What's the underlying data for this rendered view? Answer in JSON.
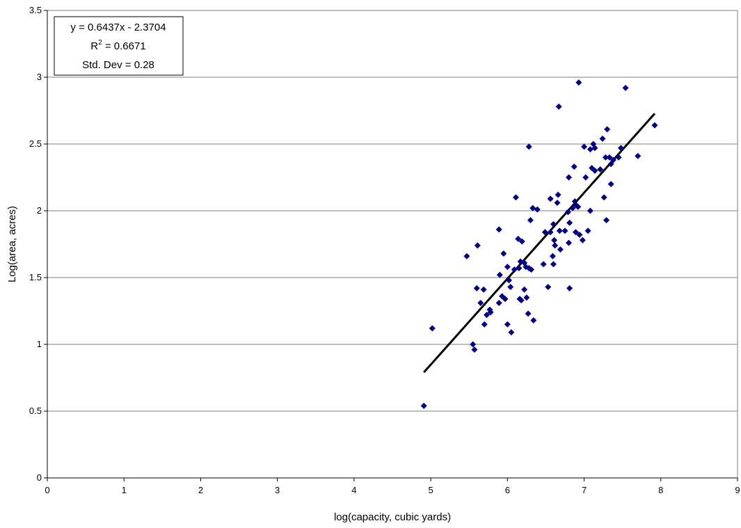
{
  "chart_data": {
    "type": "scatter",
    "xlabel": "log(capacity, cubic yards)",
    "ylabel": "Log(area, acres)",
    "xlim": [
      0,
      9
    ],
    "ylim": [
      0,
      3.5
    ],
    "x_ticks": [
      "0",
      "1",
      "2",
      "3",
      "4",
      "5",
      "6",
      "7",
      "8",
      "9"
    ],
    "y_ticks": [
      "0",
      "0.5",
      "1",
      "1.5",
      "2",
      "2.5",
      "3",
      "3.5"
    ],
    "grid": "horizontal",
    "marker_color": "#000080",
    "trendline": {
      "slope": 0.6437,
      "intercept": -2.3704,
      "x_range": [
        4.91,
        7.92
      ],
      "color": "#000000"
    },
    "annotation": {
      "equation": "y = 0.6437x - 2.3704",
      "r_squared_prefix": "R",
      "r_squared_superscript": "2",
      "r_squared_value": " = 0.6671",
      "std_dev": "Std. Dev = 0.28"
    },
    "points": [
      [
        4.91,
        0.54
      ],
      [
        5.02,
        1.12
      ],
      [
        5.47,
        1.66
      ],
      [
        5.55,
        1.0
      ],
      [
        5.57,
        0.96
      ],
      [
        5.6,
        1.42
      ],
      [
        5.61,
        1.74
      ],
      [
        5.65,
        1.31
      ],
      [
        5.69,
        1.41
      ],
      [
        5.7,
        1.15
      ],
      [
        5.73,
        1.22
      ],
      [
        5.77,
        1.26
      ],
      [
        5.78,
        1.24
      ],
      [
        5.89,
        1.31
      ],
      [
        5.89,
        1.86
      ],
      [
        5.9,
        1.52
      ],
      [
        5.93,
        1.36
      ],
      [
        5.95,
        1.68
      ],
      [
        5.97,
        1.34
      ],
      [
        6.0,
        1.58
      ],
      [
        6.0,
        1.15
      ],
      [
        6.02,
        1.48
      ],
      [
        6.04,
        1.43
      ],
      [
        6.05,
        1.09
      ],
      [
        6.09,
        1.56
      ],
      [
        6.11,
        2.1
      ],
      [
        6.14,
        1.79
      ],
      [
        6.15,
        1.57
      ],
      [
        6.16,
        1.34
      ],
      [
        6.18,
        1.33
      ],
      [
        6.17,
        1.62
      ],
      [
        6.19,
        1.77
      ],
      [
        6.22,
        1.61
      ],
      [
        6.22,
        1.41
      ],
      [
        6.24,
        1.58
      ],
      [
        6.25,
        1.35
      ],
      [
        6.27,
        1.23
      ],
      [
        6.28,
        2.48
      ],
      [
        6.28,
        1.57
      ],
      [
        6.3,
        1.93
      ],
      [
        6.31,
        1.56
      ],
      [
        6.33,
        2.02
      ],
      [
        6.34,
        1.18
      ],
      [
        6.39,
        2.01
      ],
      [
        6.47,
        1.6
      ],
      [
        6.49,
        1.84
      ],
      [
        6.53,
        1.43
      ],
      [
        6.56,
        2.09
      ],
      [
        6.56,
        1.84
      ],
      [
        6.59,
        1.66
      ],
      [
        6.6,
        1.6
      ],
      [
        6.6,
        1.9
      ],
      [
        6.61,
        1.78
      ],
      [
        6.62,
        1.74
      ],
      [
        6.65,
        2.06
      ],
      [
        6.66,
        2.12
      ],
      [
        6.67,
        2.78
      ],
      [
        6.68,
        1.85
      ],
      [
        6.69,
        1.71
      ],
      [
        6.75,
        1.85
      ],
      [
        6.79,
        1.99
      ],
      [
        6.8,
        2.25
      ],
      [
        6.8,
        1.76
      ],
      [
        6.81,
        1.42
      ],
      [
        6.81,
        1.91
      ],
      [
        6.85,
        2.02
      ],
      [
        6.87,
        2.33
      ],
      [
        6.88,
        2.07
      ],
      [
        6.89,
        1.84
      ],
      [
        6.9,
        2.04
      ],
      [
        6.92,
        2.03
      ],
      [
        6.93,
        2.96
      ],
      [
        6.94,
        1.82
      ],
      [
        6.98,
        1.78
      ],
      [
        7.0,
        2.48
      ],
      [
        7.02,
        2.25
      ],
      [
        7.05,
        1.85
      ],
      [
        7.08,
        2.0
      ],
      [
        7.08,
        2.46
      ],
      [
        7.1,
        2.32
      ],
      [
        7.12,
        2.5
      ],
      [
        7.14,
        2.3
      ],
      [
        7.14,
        2.47
      ],
      [
        7.21,
        2.31
      ],
      [
        7.24,
        2.54
      ],
      [
        7.26,
        2.1
      ],
      [
        7.28,
        2.4
      ],
      [
        7.29,
        1.93
      ],
      [
        7.3,
        2.61
      ],
      [
        7.33,
        2.4
      ],
      [
        7.35,
        2.35
      ],
      [
        7.35,
        2.2
      ],
      [
        7.38,
        2.38
      ],
      [
        7.45,
        2.4
      ],
      [
        7.48,
        2.47
      ],
      [
        7.54,
        2.92
      ],
      [
        7.7,
        2.41
      ],
      [
        7.92,
        2.64
      ]
    ]
  }
}
